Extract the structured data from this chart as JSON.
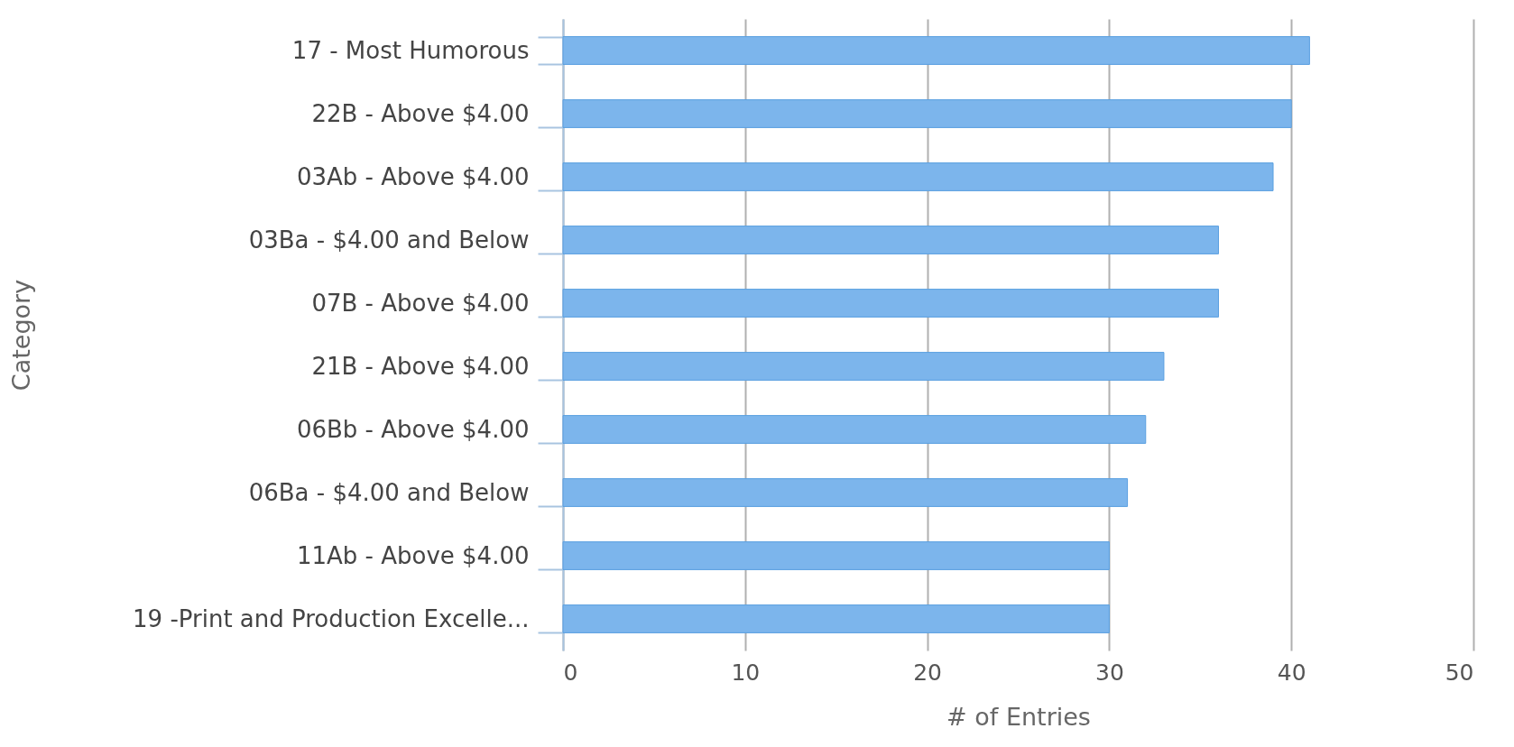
{
  "chart_data": {
    "type": "bar",
    "orientation": "horizontal",
    "xlabel": "# of Entries",
    "ylabel": "Category",
    "categories": [
      "17 - Most Humorous",
      "22B - Above $4.00",
      "03Ab - Above $4.00",
      "03Ba - $4.00 and Below",
      "07B - Above $4.00",
      "21B - Above $4.00",
      "06Bb - Above $4.00",
      "06Ba - $4.00 and Below",
      "11Ab - Above $4.00",
      "19 -Print and Production Excelle..."
    ],
    "values": [
      41,
      40,
      39,
      36,
      36,
      33,
      32,
      31,
      30,
      30
    ],
    "color": "#7cb5ec",
    "xlim": [
      0,
      50
    ],
    "xticks": [
      0,
      10,
      20,
      30,
      40,
      50
    ],
    "grid": "x"
  }
}
